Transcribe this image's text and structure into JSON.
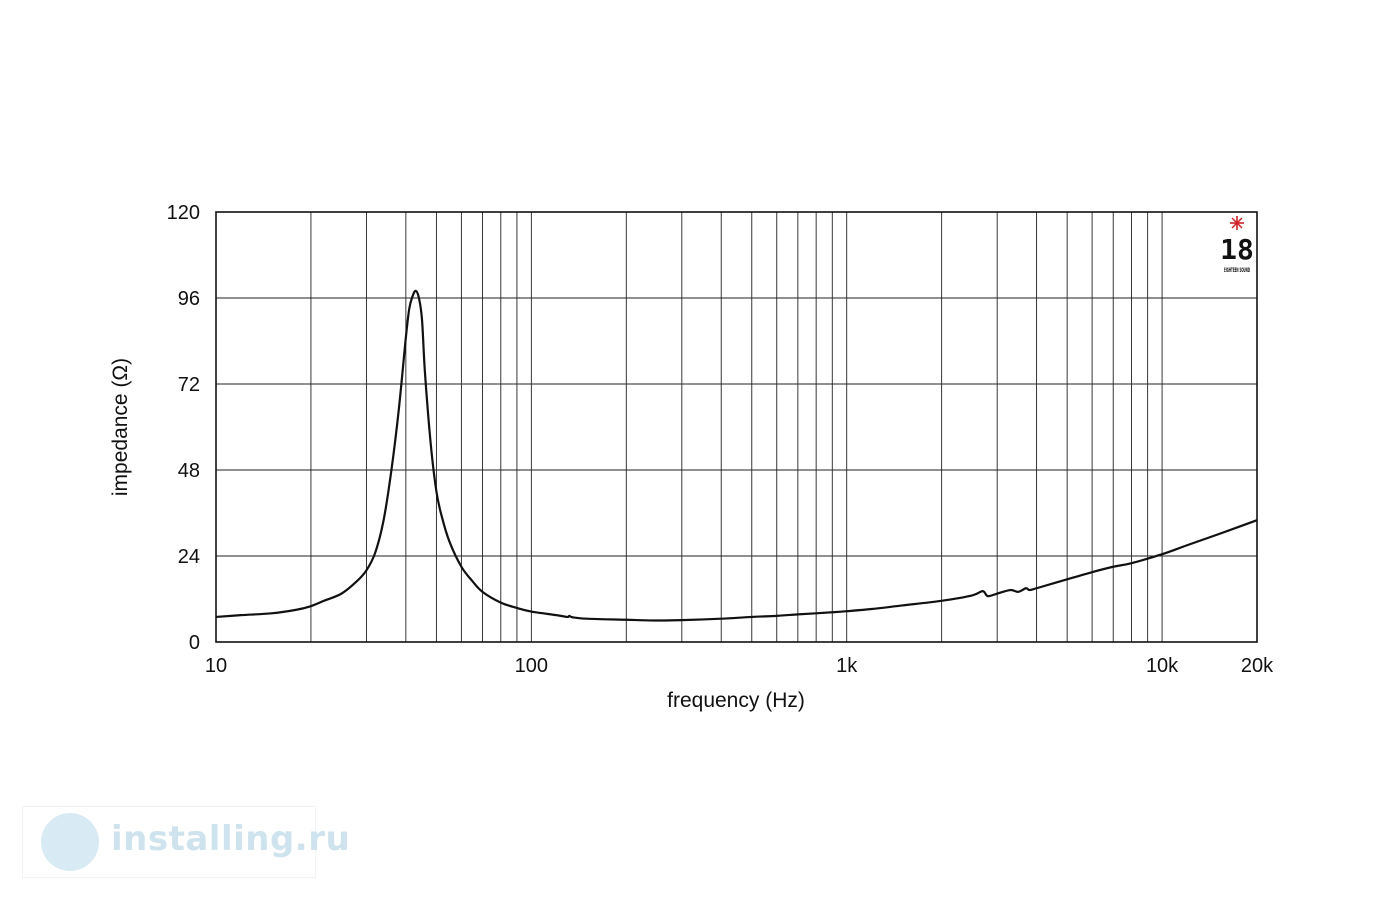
{
  "chart_data": {
    "type": "line",
    "xscale": "log",
    "xlim": [
      10,
      20000
    ],
    "ylim": [
      0,
      120
    ],
    "xlabel": "frequency (Hz)",
    "ylabel": "impedance (Ω)",
    "xticks": [
      {
        "value": 10,
        "label": "10"
      },
      {
        "value": 100,
        "label": "100"
      },
      {
        "value": 1000,
        "label": "1k"
      },
      {
        "value": 10000,
        "label": "10k"
      },
      {
        "value": 20000,
        "label": "20k"
      }
    ],
    "yticks": [
      {
        "value": 0,
        "label": "0"
      },
      {
        "value": 24,
        "label": "24"
      },
      {
        "value": 48,
        "label": "48"
      },
      {
        "value": 72,
        "label": "72"
      },
      {
        "value": 96,
        "label": "96"
      },
      {
        "value": 120,
        "label": "120"
      }
    ],
    "grid": true,
    "series": [
      {
        "color": "#111111",
        "x": [
          10,
          12,
          15,
          18,
          20,
          22,
          25,
          28,
          30,
          32,
          34,
          36,
          38,
          40,
          41,
          42,
          43,
          44,
          45,
          46,
          48,
          50,
          52,
          55,
          60,
          65,
          70,
          80,
          90,
          100,
          120,
          130,
          132,
          135,
          150,
          200,
          250,
          300,
          400,
          500,
          600,
          700,
          800,
          900,
          1000,
          1200,
          1500,
          2000,
          2500,
          2700,
          2800,
          3000,
          3300,
          3500,
          3700,
          3800,
          4000,
          5000,
          6000,
          7000,
          8000,
          10000,
          12000,
          15000,
          20000
        ],
        "y": [
          7,
          7.5,
          8,
          9,
          10,
          11.5,
          13.5,
          17,
          20,
          25,
          34,
          48,
          65,
          85,
          93,
          96.5,
          98,
          96,
          90,
          75,
          55,
          42,
          35,
          28,
          21,
          17,
          14,
          11,
          9.5,
          8.5,
          7.5,
          7,
          7.3,
          6.9,
          6.5,
          6.2,
          6,
          6.1,
          6.5,
          7,
          7.3,
          7.7,
          8,
          8.3,
          8.6,
          9.2,
          10.2,
          11.5,
          13,
          14.2,
          12.8,
          13.5,
          14.5,
          14,
          15,
          14.5,
          15,
          17.5,
          19.5,
          21,
          22,
          24.5,
          27,
          30,
          34
        ]
      }
    ]
  },
  "logo": {
    "brand_number": "18",
    "brand_words": "EIGHTEEN SOUND",
    "star_color": "#d0202a"
  },
  "watermark": {
    "text": "installing.ru",
    "color": "#cfe3ef"
  }
}
